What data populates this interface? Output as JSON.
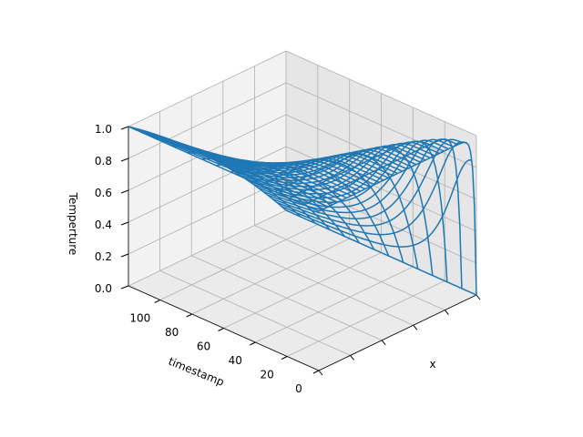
{
  "chart_data": {
    "type": "wireframe-3d",
    "title": "",
    "series_color": "#1f77b4",
    "xlabel": "x",
    "ylabel": "timestamp",
    "zlabel": "Temperture",
    "x_range": [
      0,
      1
    ],
    "timestamp_range": [
      0,
      120
    ],
    "zlim": [
      0,
      1
    ],
    "timestamp_ticks": [
      "0",
      "20",
      "40",
      "60",
      "80",
      "100"
    ],
    "z_ticks": [
      "0.0",
      "0.2",
      "0.4",
      "0.6",
      "0.8",
      "1.0"
    ],
    "grid": true,
    "surface": {
      "description": "Temperature vs x and timestamp: at x = 0 the temperature is 1 for all timestamps; it decays with x, and the profile spreads as timestamp grows, approaching a linear profile (1 - x) at the largest timestamp.",
      "boundary_left": 1.0,
      "boundary_right": 0.0,
      "x_lines": 35,
      "timestamp_lines": 14
    }
  }
}
